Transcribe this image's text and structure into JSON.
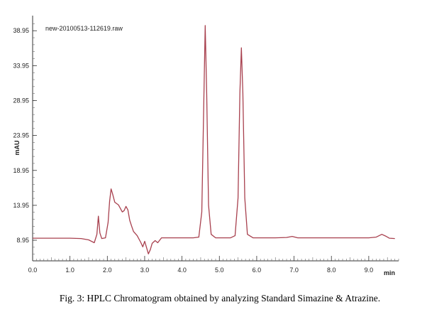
{
  "caption": "Fig. 3: HPLC Chromatogram obtained by analyzing Standard Simazine & Atrazine.",
  "chart_data": {
    "type": "line",
    "title": "new-20100513-112619.raw",
    "xlabel": "min",
    "ylabel": "mAU",
    "xlim": [
      0,
      9.8
    ],
    "ylim": [
      6.0,
      40.5
    ],
    "x_ticks": [
      0.0,
      1.0,
      2.0,
      3.0,
      4.0,
      5.0,
      6.0,
      7.0,
      8.0,
      9.0
    ],
    "x_tick_labels": [
      "0.0",
      "1.0",
      "2.0",
      "3.0",
      "4.0",
      "5.0",
      "6.0",
      "7.0",
      "8.0",
      "9.0"
    ],
    "y_ticks": [
      8.95,
      13.95,
      18.95,
      23.95,
      28.95,
      33.95,
      38.95
    ],
    "y_tick_labels": [
      "8.95",
      "13.95",
      "18.95",
      "23.95",
      "28.95",
      "33.95",
      "38.95"
    ],
    "grid": false,
    "line_color": "#a8404e",
    "series": [
      {
        "x": [
          0.0,
          0.5,
          1.0,
          1.3,
          1.5,
          1.65,
          1.72,
          1.76,
          1.8,
          1.85,
          1.95,
          2.02,
          2.06,
          2.1,
          2.14,
          2.2,
          2.3,
          2.4,
          2.45,
          2.5,
          2.55,
          2.6,
          2.65,
          2.7,
          2.8,
          2.9,
          2.95,
          3.0,
          3.05,
          3.1,
          3.15,
          3.2,
          3.28,
          3.35,
          3.45,
          3.6,
          3.8,
          4.0,
          4.3,
          4.45,
          4.53,
          4.58,
          4.62,
          4.66,
          4.71,
          4.78,
          4.9,
          5.1,
          5.3,
          5.42,
          5.5,
          5.55,
          5.59,
          5.63,
          5.68,
          5.75,
          5.9,
          6.2,
          6.5,
          6.8,
          6.95,
          7.1,
          7.5,
          8.0,
          8.5,
          9.0,
          9.2,
          9.35,
          9.45,
          9.55,
          9.7
        ],
        "y": [
          9.25,
          9.25,
          9.25,
          9.2,
          9.0,
          8.6,
          9.8,
          12.4,
          10.0,
          9.2,
          9.3,
          11.5,
          14.5,
          16.3,
          15.6,
          14.4,
          14.0,
          13.0,
          13.2,
          13.8,
          13.3,
          11.8,
          11.0,
          10.2,
          9.6,
          8.6,
          8.0,
          8.8,
          7.9,
          7.0,
          7.6,
          8.5,
          8.9,
          8.6,
          9.3,
          9.3,
          9.3,
          9.3,
          9.3,
          9.4,
          13.0,
          28.0,
          39.7,
          30.0,
          14.0,
          9.8,
          9.3,
          9.3,
          9.3,
          9.6,
          15.0,
          30.0,
          36.5,
          30.0,
          15.0,
          9.8,
          9.3,
          9.3,
          9.3,
          9.35,
          9.5,
          9.3,
          9.3,
          9.3,
          9.3,
          9.3,
          9.4,
          9.8,
          9.55,
          9.25,
          9.2
        ]
      }
    ]
  }
}
